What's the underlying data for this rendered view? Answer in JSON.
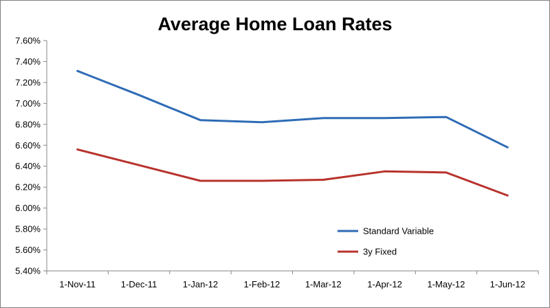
{
  "chart_data": {
    "type": "line",
    "title": "Average Home Loan Rates",
    "xlabel": "",
    "ylabel": "",
    "categories": [
      "1-Nov-11",
      "1-Dec-11",
      "1-Jan-12",
      "1-Feb-12",
      "1-Mar-12",
      "1-Apr-12",
      "1-May-12",
      "1-Jun-12"
    ],
    "y_ticks": [
      "5.40%",
      "5.60%",
      "5.80%",
      "6.00%",
      "6.20%",
      "6.40%",
      "6.60%",
      "6.80%",
      "7.00%",
      "7.20%",
      "7.40%",
      "7.60%"
    ],
    "ylim": [
      5.4,
      7.6
    ],
    "grid": false,
    "legend_position": "bottom-right (inside plot)",
    "series": [
      {
        "name": "Standard Variable",
        "color": "#2e6bb5",
        "values": [
          7.31,
          7.08,
          6.84,
          6.82,
          6.86,
          6.86,
          6.87,
          6.58
        ]
      },
      {
        "name": "3y Fixed",
        "color": "#b8322c",
        "values": [
          6.56,
          6.41,
          6.26,
          6.26,
          6.27,
          6.35,
          6.34,
          6.12
        ]
      }
    ]
  }
}
